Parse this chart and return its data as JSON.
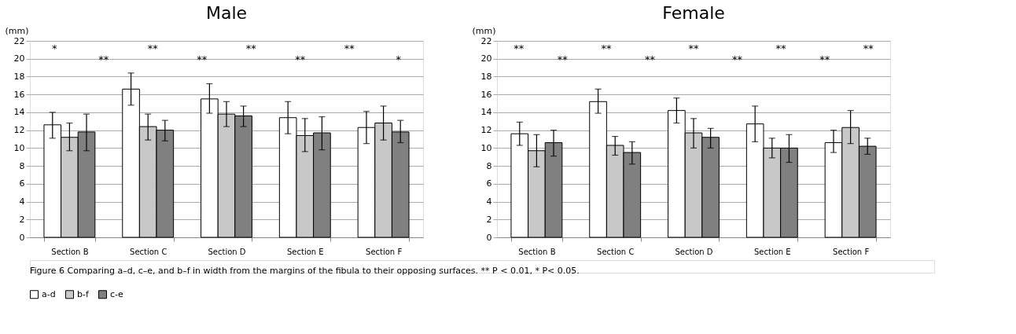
{
  "chart_data": [
    {
      "type": "bar",
      "title": "Male",
      "ylabel": "(mm)",
      "categories": [
        "Section B",
        "Section C",
        "Section D",
        "Section E",
        "Section F"
      ],
      "ylim": [
        0,
        22
      ],
      "yticks": [
        0,
        2,
        4,
        6,
        8,
        10,
        12,
        14,
        16,
        18,
        20,
        22
      ],
      "grid": "y",
      "legend": "bottom",
      "series": [
        {
          "name": "a-d",
          "color": "#ffffff",
          "values": [
            12.6,
            16.6,
            15.5,
            13.4,
            12.3
          ],
          "errors": [
            [
              11.1,
              14.0
            ],
            [
              14.8,
              18.4
            ],
            [
              13.9,
              17.2
            ],
            [
              11.6,
              15.2
            ],
            [
              10.5,
              14.1
            ]
          ]
        },
        {
          "name": "b-f",
          "color": "#c8c8c8",
          "values": [
            11.2,
            12.4,
            13.8,
            11.4,
            12.8
          ],
          "errors": [
            [
              9.7,
              12.8
            ],
            [
              10.9,
              13.8
            ],
            [
              12.4,
              15.2
            ],
            [
              9.6,
              13.3
            ],
            [
              10.9,
              14.7
            ]
          ]
        },
        {
          "name": "c-e",
          "color": "#808080",
          "values": [
            11.8,
            12.0,
            13.6,
            11.7,
            11.8
          ],
          "errors": [
            [
              9.7,
              13.8
            ],
            [
              10.8,
              13.1
            ],
            [
              12.4,
              14.7
            ],
            [
              9.8,
              13.5
            ],
            [
              10.6,
              13.1
            ]
          ]
        }
      ],
      "annotations": [
        "*",
        "**",
        "**",
        "**",
        "**",
        "**",
        "**",
        "*"
      ]
    },
    {
      "type": "bar",
      "title": "Female",
      "ylabel": "(mm)",
      "categories": [
        "Section B",
        "Section C",
        "Section D",
        "Section E",
        "Section F"
      ],
      "ylim": [
        0,
        22
      ],
      "yticks": [
        0,
        2,
        4,
        6,
        8,
        10,
        12,
        14,
        16,
        18,
        20,
        22
      ],
      "grid": "y",
      "legend": "bottom",
      "series": [
        {
          "name": "a-d",
          "color": "#ffffff",
          "values": [
            11.6,
            15.2,
            14.2,
            12.7,
            10.6
          ],
          "errors": [
            [
              10.3,
              12.9
            ],
            [
              13.9,
              16.6
            ],
            [
              12.8,
              15.6
            ],
            [
              10.7,
              14.7
            ],
            [
              9.5,
              12.0
            ]
          ]
        },
        {
          "name": "b-f",
          "color": "#c8c8c8",
          "values": [
            9.7,
            10.3,
            11.7,
            10.0,
            12.3
          ],
          "errors": [
            [
              7.9,
              11.5
            ],
            [
              9.2,
              11.3
            ],
            [
              10.0,
              13.3
            ],
            [
              8.9,
              11.1
            ],
            [
              10.5,
              14.2
            ]
          ]
        },
        {
          "name": "c-e",
          "color": "#808080",
          "values": [
            10.6,
            9.5,
            11.2,
            10.0,
            10.2
          ],
          "errors": [
            [
              9.1,
              12.0
            ],
            [
              8.2,
              10.7
            ],
            [
              10.0,
              12.2
            ],
            [
              8.4,
              11.5
            ],
            [
              9.3,
              11.1
            ]
          ]
        }
      ],
      "annotations": [
        "**",
        "**",
        "**",
        "**",
        "**",
        "**",
        "**",
        "**",
        "**"
      ]
    },
    {
      "type": "other",
      "annotations": [
        "Figure 6 Comparing a–d, c–e, and b–f in width from the margins of the fibula to their opposing surfaces. ** P < 0.01, * P< 0.05."
      ]
    }
  ]
}
